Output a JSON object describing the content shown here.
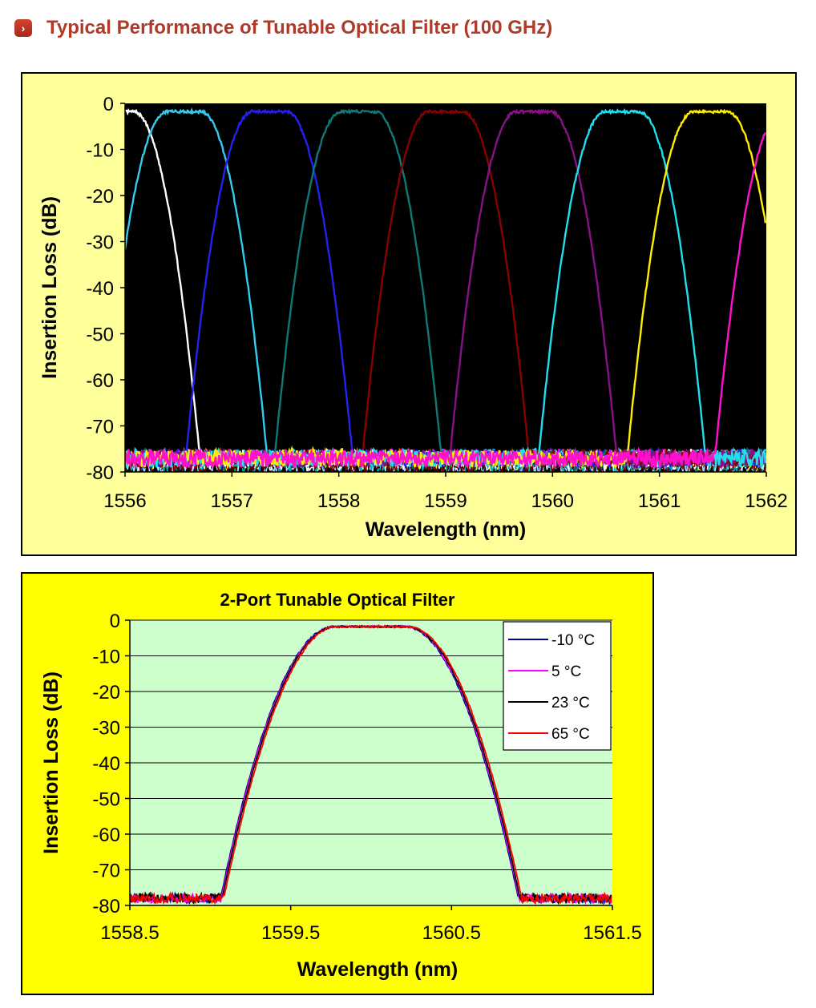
{
  "page": {
    "heading": "Typical Performance of Tunable Optical Filter (100 GHz)",
    "heading_icon": "chevron-right-icon",
    "heading_color": "#b03a28"
  },
  "chart_data": [
    {
      "type": "line",
      "title": "",
      "xlabel": "Wavelength (nm)",
      "ylabel": "Insertion Loss (dB)",
      "xlim": [
        1556,
        1562
      ],
      "ylim": [
        -80,
        0
      ],
      "xticks": [
        "1556",
        "1557",
        "1558",
        "1559",
        "1560",
        "1561",
        "1562"
      ],
      "yticks": [
        "0",
        "-10",
        "-20",
        "-30",
        "-40",
        "-50",
        "-60",
        "-70",
        "-80"
      ],
      "grid": false,
      "legend": "none",
      "plot_background": "#000000",
      "chart_background": "#ffff99",
      "channel_shape": {
        "peak_loss": -1.8,
        "flat_halfwidth": 0.16,
        "edge_slope_db_per_nm": 195,
        "noise_floor": -77
      },
      "series": [
        {
          "center": 1555.92,
          "color": "#ffffff"
        },
        {
          "center": 1556.55,
          "color": "#33ccee"
        },
        {
          "center": 1557.35,
          "color": "#2222ee"
        },
        {
          "center": 1558.18,
          "color": "#117777"
        },
        {
          "center": 1559.0,
          "color": "#880000"
        },
        {
          "center": 1559.82,
          "color": "#881188"
        },
        {
          "center": 1560.65,
          "color": "#22ddee"
        },
        {
          "center": 1561.48,
          "color": "#ffee00"
        },
        {
          "center": 1562.3,
          "color": "#ff11cc"
        }
      ],
      "floor_noise_colors": [
        "#ff6600",
        "#0044cc",
        "#aaddff",
        "#33aaff",
        "#ffff00",
        "#00aaaa",
        "#ff00ff",
        "#ffffff",
        "#660000"
      ]
    },
    {
      "type": "line",
      "title": "2-Port Tunable Optical Filter",
      "xlabel": "Wavelength (nm)",
      "ylabel": "Insertion Loss (dB)",
      "xlim": [
        1558.5,
        1561.5
      ],
      "ylim": [
        -80,
        0
      ],
      "xticks": [
        "1558.5",
        "1559.5",
        "1560.5",
        "1561.5"
      ],
      "yticks": [
        "0",
        "-10",
        "-20",
        "-30",
        "-40",
        "-50",
        "-60",
        "-70",
        "-80"
      ],
      "grid": true,
      "legend": "top-right",
      "plot_background": "#ccffcc",
      "chart_background": "#ffff00",
      "channel_shape": {
        "center": 1560.0,
        "peak_loss": -1.8,
        "flat_halfwidth": 0.22,
        "edge_slope_db_per_nm": 153,
        "noise_floor": -78
      },
      "series": [
        {
          "name": "-10 °C",
          "color": "#000099",
          "shift": -0.01
        },
        {
          "name": "5 °C",
          "color": "#ff00ff",
          "shift": -0.005
        },
        {
          "name": "23 °C",
          "color": "#000000",
          "shift": 0.0
        },
        {
          "name": "65 °C",
          "color": "#ff0000",
          "shift": 0.01
        }
      ]
    }
  ]
}
